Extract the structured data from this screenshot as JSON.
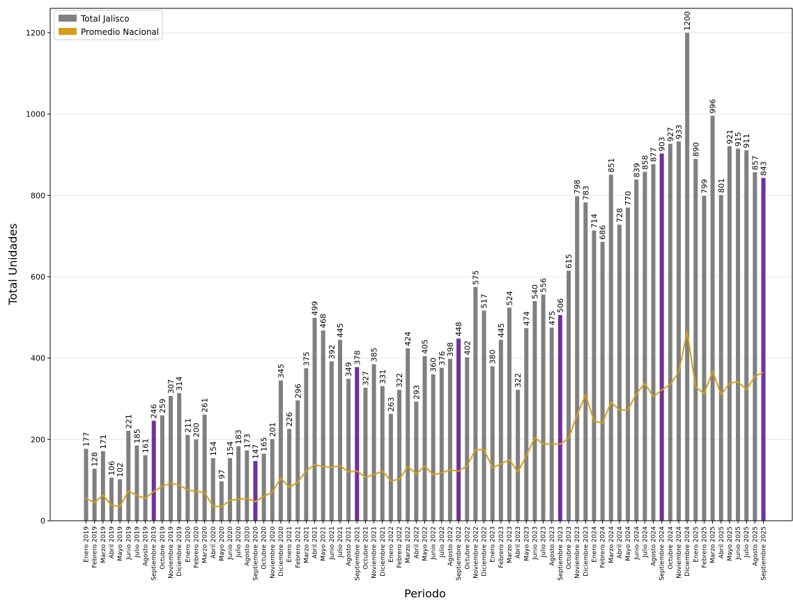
{
  "chart_data": {
    "type": "bar",
    "xlabel": "Periodo",
    "ylabel": "Total Unidades",
    "ylim": [
      0,
      1260
    ],
    "yticks": [
      0,
      200,
      400,
      600,
      800,
      1000,
      1200
    ],
    "grid": "horizontal",
    "legend": {
      "placement": "top-left"
    },
    "categories": [
      "Enero 2019",
      "Febrero 2019",
      "Marzo 2019",
      "Abril 2019",
      "Mayo 2019",
      "Junio 2019",
      "Julio 2019",
      "Agosto 2019",
      "Septiembre 2019",
      "Octubre 2019",
      "Noviembre 2019",
      "Diciembre 2019",
      "Enero 2020",
      "Febrero 2020",
      "Marzo 2020",
      "Abril 2020",
      "Mayo 2020",
      "Junio 2020",
      "Julio 2020",
      "Agosto 2020",
      "Septiembre 2020",
      "Octubre 2020",
      "Noviembre 2020",
      "Diciembre 2020",
      "Enero 2021",
      "Febrero 2021",
      "Marzo 2021",
      "Abril 2021",
      "Mayo 2021",
      "Junio 2021",
      "Julio 2021",
      "Agosto 2021",
      "Septiembre 2021",
      "Octubre 2021",
      "Noviembre 2021",
      "Diciembre 2021",
      "Enero 2022",
      "Febrero 2022",
      "Marzo 2022",
      "Abril 2022",
      "Mayo 2022",
      "Junio 2022",
      "Julio 2022",
      "Agosto 2022",
      "Septiembre 2022",
      "Octubre 2022",
      "Noviembre 2022",
      "Diciembre 2022",
      "Enero 2023",
      "Febrero 2023",
      "Marzo 2023",
      "Abril 2023",
      "Mayo 2023",
      "Junio 2023",
      "Julio 2023",
      "Agosto 2023",
      "Septiembre 2023",
      "Octubre 2023",
      "Noviembre 2023",
      "Diciembre 2023",
      "Enero 2024",
      "Febrero 2024",
      "Marzo 2024",
      "Abril 2024",
      "Mayo 2024",
      "Junio 2024",
      "Julio 2024",
      "Agosto 2024",
      "Septiembre 2024",
      "Octubre 2024",
      "Noviembre 2024",
      "Diciembre 2024",
      "Enero 2025",
      "Febrero 2025",
      "Marzo 2025",
      "Abril 2025",
      "Mayo 2025",
      "Junio 2025",
      "Julio 2025",
      "Agosto 2025",
      "Septiembre 2025"
    ],
    "series": [
      {
        "name": "Total Jalisco",
        "kind": "bar",
        "color": "#808080",
        "highlight_color": "#7030a0",
        "highlight_categories": [
          "Septiembre 2019",
          "Septiembre 2020",
          "Septiembre 2021",
          "Septiembre 2022",
          "Septiembre 2023",
          "Septiembre 2024",
          "Septiembre 2025"
        ],
        "values": [
          177,
          128,
          171,
          106,
          102,
          221,
          185,
          161,
          246,
          259,
          307,
          314,
          211,
          200,
          261,
          154,
          97,
          154,
          183,
          173,
          147,
          165,
          201,
          345,
          226,
          296,
          375,
          499,
          468,
          392,
          445,
          349,
          378,
          327,
          385,
          331,
          263,
          322,
          424,
          293,
          405,
          360,
          376,
          398,
          448,
          402,
          575,
          517,
          380,
          445,
          524,
          322,
          474,
          540,
          556,
          475,
          506,
          615,
          798,
          783,
          714,
          686,
          851,
          728,
          770,
          839,
          858,
          877,
          903,
          927,
          933,
          1200,
          890,
          799,
          996,
          801,
          921,
          915,
          911,
          857,
          843
        ]
      },
      {
        "name": "Promedio Nacional",
        "kind": "line",
        "color": "#d4a017",
        "values": [
          55,
          45,
          63,
          38,
          35,
          73,
          62,
          55,
          72,
          85,
          92,
          88,
          76,
          72,
          70,
          35,
          35,
          50,
          53,
          55,
          47,
          60,
          70,
          105,
          82,
          95,
          123,
          138,
          133,
          132,
          135,
          120,
          122,
          107,
          113,
          122,
          98,
          102,
          133,
          115,
          135,
          113,
          118,
          125,
          122,
          135,
          175,
          175,
          130,
          140,
          150,
          120,
          160,
          205,
          188,
          190,
          188,
          203,
          260,
          310,
          245,
          240,
          292,
          272,
          273,
          312,
          338,
          305,
          322,
          335,
          365,
          465,
          330,
          312,
          368,
          310,
          338,
          342,
          322,
          355,
          365
        ]
      }
    ]
  }
}
